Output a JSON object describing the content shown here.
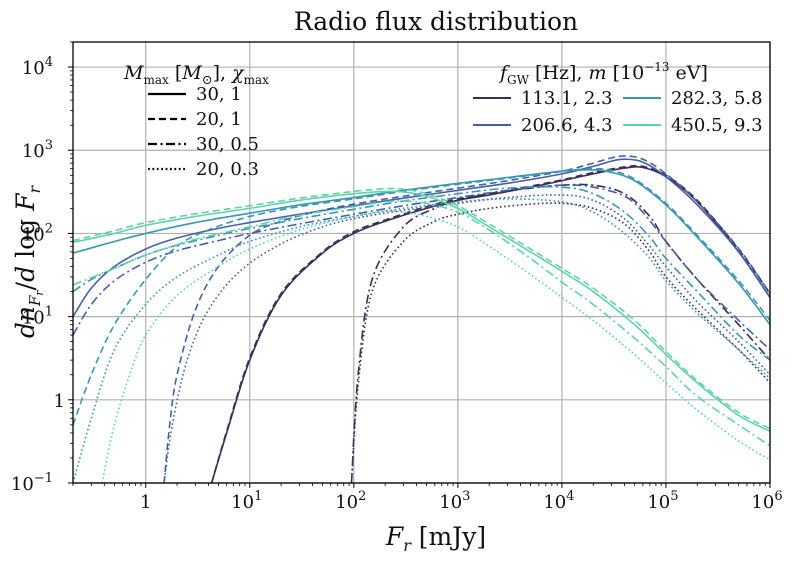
{
  "chart_data": {
    "type": "line",
    "title": "Radio flux distribution",
    "xlabel": "F_r [mJy]",
    "ylabel": "dn_{F_r}/d log F_r",
    "xscale": "log",
    "yscale": "log",
    "xlim": [
      0.2,
      1000000
    ],
    "ylim": [
      0.1,
      20000
    ],
    "grid": true,
    "x_ticks": [
      {
        "value": 1,
        "label": "1"
      },
      {
        "value": 10,
        "label": "10",
        "exp": "1"
      },
      {
        "value": 100,
        "label": "10",
        "exp": "2"
      },
      {
        "value": 1000,
        "label": "10",
        "exp": "3"
      },
      {
        "value": 10000,
        "label": "10",
        "exp": "4"
      },
      {
        "value": 100000,
        "label": "10",
        "exp": "5"
      },
      {
        "value": 1000000,
        "label": "10",
        "exp": "6"
      }
    ],
    "y_ticks": [
      {
        "value": 0.1,
        "label": "10",
        "exp": "−1"
      },
      {
        "value": 1,
        "label": "1"
      },
      {
        "value": 10,
        "label": "10",
        "exp": "1"
      },
      {
        "value": 100,
        "label": "10",
        "exp": "2"
      },
      {
        "value": 1000,
        "label": "10",
        "exp": "3"
      },
      {
        "value": 10000,
        "label": "10",
        "exp": "4"
      }
    ],
    "legend_styles": {
      "title": "M_max [M_⊙], χ_max",
      "placement": "top-left",
      "entries": [
        {
          "label": "30, 1",
          "dash": "solid"
        },
        {
          "label": "20, 1",
          "dash": "dashed"
        },
        {
          "label": "30, 0.5",
          "dash": "dashdot"
        },
        {
          "label": "20, 0.3",
          "dash": "dotted"
        }
      ]
    },
    "legend_colors": {
      "title": "f_GW [Hz], m [10^−13 eV]",
      "placement": "top-right",
      "entries": [
        {
          "label": "113.1, 2.3",
          "color": "#3b2f54"
        },
        {
          "label": "206.6, 4.3",
          "color": "#4560a8"
        },
        {
          "label": "282.3, 5.8",
          "color": "#3a97b4"
        },
        {
          "label": "450.5, 9.3",
          "color": "#5fd3ab"
        }
      ]
    },
    "series": [
      {
        "name": "113.1, 2.3 | 30, 1",
        "color": "#3b2f54",
        "dash": "solid",
        "x": [
          4.3,
          6,
          10,
          20,
          50,
          100,
          200,
          500,
          1000,
          2000,
          5000,
          10000,
          20000,
          40000,
          60000,
          100000,
          200000,
          500000,
          1000000
        ],
        "y": [
          0.1,
          0.4,
          3,
          18,
          58,
          100,
          140,
          200,
          250,
          290,
          360,
          430,
          520,
          610,
          620,
          480,
          240,
          60,
          17
        ]
      },
      {
        "name": "113.1, 2.3 | 20, 1",
        "color": "#3b2f54",
        "dash": "dashed",
        "x": [
          4.3,
          6,
          10,
          20,
          50,
          100,
          200,
          500,
          1000,
          2000,
          5000,
          10000,
          20000,
          40000,
          60000,
          100000,
          200000,
          500000,
          1000000
        ],
        "y": [
          0.1,
          0.42,
          3.2,
          19,
          60,
          105,
          145,
          210,
          260,
          300,
          370,
          440,
          540,
          630,
          640,
          500,
          250,
          64,
          19
        ]
      },
      {
        "name": "113.1, 2.3 | 30, 0.5",
        "color": "#3b2f54",
        "dash": "dashdot",
        "x": [
          95,
          110,
          150,
          300,
          600,
          1000,
          2000,
          5000,
          10000,
          20000,
          40000,
          70000,
          100000,
          200000,
          500000,
          1000000
        ],
        "y": [
          0.1,
          2,
          28,
          120,
          200,
          250,
          300,
          350,
          380,
          380,
          300,
          160,
          80,
          28,
          8,
          3
        ]
      },
      {
        "name": "113.1, 2.3 | 20, 0.3",
        "color": "#3b2f54",
        "dash": "dotted",
        "x": [
          95,
          110,
          150,
          300,
          600,
          1000,
          2000,
          5000,
          10000,
          20000,
          40000,
          70000,
          100000,
          200000,
          500000,
          1000000
        ],
        "y": [
          0.1,
          1.5,
          20,
          80,
          140,
          170,
          200,
          225,
          230,
          200,
          130,
          60,
          30,
          12,
          4,
          1.6
        ]
      },
      {
        "name": "206.6, 4.3 | 30, 1",
        "color": "#4560a8",
        "dash": "solid",
        "x": [
          0.2,
          0.3,
          0.5,
          1,
          2,
          5,
          10,
          30,
          100,
          300,
          1000,
          3000,
          10000,
          20000,
          30000,
          40000,
          60000,
          100000,
          200000,
          500000,
          1000000
        ],
        "y": [
          10,
          22,
          40,
          65,
          88,
          115,
          135,
          170,
          215,
          265,
          330,
          400,
          520,
          640,
          740,
          780,
          720,
          480,
          220,
          60,
          17
        ]
      },
      {
        "name": "206.6, 4.3 | 20, 1",
        "color": "#4560a8",
        "dash": "dashed",
        "x": [
          1.5,
          1.7,
          2,
          3,
          5,
          10,
          20,
          50,
          100,
          300,
          1000,
          3000,
          10000,
          20000,
          30000,
          40000,
          60000,
          100000,
          200000,
          500000,
          1000000
        ],
        "y": [
          0.1,
          0.5,
          2,
          12,
          40,
          95,
          140,
          190,
          225,
          280,
          350,
          430,
          560,
          700,
          810,
          850,
          780,
          520,
          240,
          66,
          19
        ]
      },
      {
        "name": "206.6, 4.3 | 30, 0.5",
        "color": "#4560a8",
        "dash": "dashdot",
        "x": [
          0.2,
          0.3,
          0.5,
          1,
          2,
          5,
          10,
          30,
          100,
          300,
          1000,
          3000,
          10000,
          20000,
          40000,
          60000,
          100000,
          200000,
          500000,
          1000000
        ],
        "y": [
          6,
          14,
          27,
          45,
          62,
          82,
          100,
          130,
          170,
          215,
          270,
          330,
          380,
          360,
          280,
          180,
          80,
          28,
          9,
          4
        ]
      },
      {
        "name": "206.6, 4.3 | 20, 0.3",
        "color": "#4560a8",
        "dash": "dotted",
        "x": [
          1.5,
          1.8,
          2.5,
          4,
          8,
          20,
          50,
          100,
          300,
          1000,
          3000,
          10000,
          20000,
          40000,
          70000,
          100000,
          200000,
          500000,
          1000000
        ],
        "y": [
          0.1,
          0.5,
          3,
          12,
          35,
          75,
          120,
          150,
          190,
          230,
          270,
          290,
          250,
          150,
          70,
          40,
          15,
          5,
          2
        ]
      },
      {
        "name": "282.3, 5.8 | 30, 1",
        "color": "#3a97b4",
        "dash": "solid",
        "x": [
          0.2,
          0.5,
          1,
          3,
          10,
          30,
          100,
          300,
          1000,
          3000,
          10000,
          20000,
          30000,
          50000,
          100000,
          200000,
          500000,
          1000000
        ],
        "y": [
          58,
          80,
          100,
          135,
          175,
          220,
          270,
          330,
          400,
          470,
          560,
          580,
          540,
          430,
          220,
          90,
          25,
          8
        ]
      },
      {
        "name": "282.3, 5.8 | 20, 1",
        "color": "#3a97b4",
        "dash": "dashed",
        "x": [
          0.2,
          0.3,
          0.5,
          1,
          2,
          4,
          10,
          30,
          100,
          300,
          1000,
          3000,
          10000,
          20000,
          30000,
          50000,
          100000,
          200000,
          500000,
          1000000
        ],
        "y": [
          0.5,
          2,
          8,
          28,
          70,
          110,
          160,
          210,
          260,
          320,
          390,
          460,
          560,
          600,
          570,
          450,
          230,
          95,
          27,
          9
        ]
      },
      {
        "name": "282.3, 5.8 | 30, 0.5",
        "color": "#3a97b4",
        "dash": "dashdot",
        "x": [
          0.2,
          0.3,
          0.5,
          1,
          2,
          5,
          10,
          30,
          100,
          300,
          1000,
          3000,
          10000,
          20000,
          40000,
          70000,
          100000,
          200000,
          500000,
          1000000
        ],
        "y": [
          20,
          28,
          38,
          55,
          72,
          95,
          115,
          150,
          195,
          245,
          300,
          350,
          360,
          300,
          180,
          90,
          50,
          20,
          6,
          3
        ]
      },
      {
        "name": "282.3, 5.8 | 20, 0.3",
        "color": "#3a97b4",
        "dash": "dotted",
        "x": [
          0.2,
          0.3,
          0.5,
          1,
          2,
          5,
          10,
          30,
          100,
          300,
          1000,
          3000,
          10000,
          20000,
          40000,
          70000,
          100000,
          200000,
          500000,
          1000000
        ],
        "y": [
          0.1,
          0.6,
          4,
          14,
          30,
          55,
          80,
          120,
          160,
          200,
          240,
          260,
          240,
          180,
          100,
          50,
          27,
          11,
          4,
          1.8
        ]
      },
      {
        "name": "450.5, 9.3 | 30, 1",
        "color": "#5fd3ab",
        "dash": "solid",
        "x": [
          0.2,
          0.5,
          1,
          3,
          10,
          30,
          100,
          200,
          300,
          500,
          1000,
          2000,
          5000,
          10000,
          20000,
          50000,
          100000,
          200000,
          500000,
          1000000
        ],
        "y": [
          78,
          100,
          125,
          160,
          200,
          250,
          300,
          320,
          315,
          280,
          200,
          120,
          60,
          35,
          20,
          8,
          3.5,
          1.6,
          0.65,
          0.42
        ]
      },
      {
        "name": "450.5, 9.3 | 20, 1",
        "color": "#5fd3ab",
        "dash": "dashed",
        "x": [
          0.2,
          0.5,
          1,
          3,
          10,
          30,
          100,
          200,
          300,
          500,
          1000,
          2000,
          5000,
          10000,
          20000,
          50000,
          100000,
          200000,
          500000,
          1000000
        ],
        "y": [
          82,
          108,
          135,
          172,
          215,
          265,
          320,
          345,
          340,
          300,
          215,
          130,
          65,
          38,
          22,
          9,
          3.8,
          1.7,
          0.7,
          0.45
        ]
      },
      {
        "name": "450.5, 9.3 | 30, 0.5",
        "color": "#5fd3ab",
        "dash": "dashdot",
        "x": [
          0.2,
          0.5,
          1,
          3,
          10,
          30,
          100,
          200,
          300,
          500,
          1000,
          2000,
          5000,
          10000,
          20000,
          50000,
          100000,
          200000,
          500000,
          1000000
        ],
        "y": [
          24,
          38,
          55,
          85,
          120,
          165,
          210,
          240,
          245,
          230,
          180,
          110,
          50,
          26,
          14,
          5.5,
          2.5,
          1.1,
          0.5,
          0.28
        ]
      },
      {
        "name": "450.5, 9.3 | 20, 0.3",
        "color": "#5fd3ab",
        "dash": "dotted",
        "x": [
          0.38,
          0.5,
          0.7,
          1,
          2,
          5,
          10,
          30,
          100,
          200,
          300,
          500,
          1000,
          2000,
          5000,
          10000,
          20000,
          50000,
          100000,
          200000,
          500000,
          1000000
        ],
        "y": [
          0.1,
          0.5,
          2,
          6,
          18,
          40,
          65,
          110,
          160,
          185,
          180,
          160,
          120,
          70,
          32,
          17,
          9,
          3.5,
          1.6,
          0.75,
          0.32,
          0.19
        ]
      }
    ]
  }
}
